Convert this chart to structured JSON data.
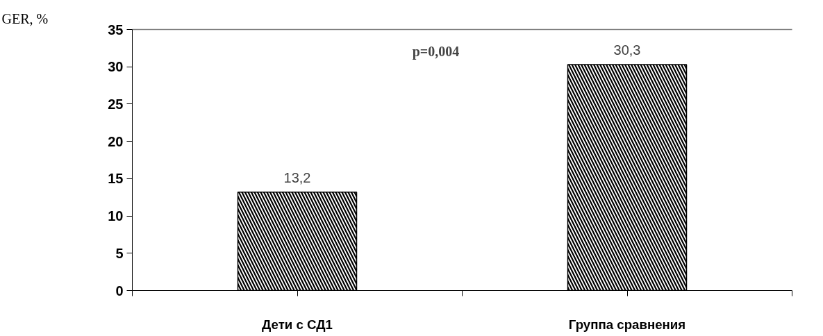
{
  "chart_data": {
    "type": "bar",
    "ylabel": "GER, %",
    "categories": [
      "Дети с СД1",
      "Группа сравнения"
    ],
    "values": [
      13.2,
      30.3
    ],
    "value_labels": [
      "13,2",
      "30,3"
    ],
    "color": "#ffffff",
    "ylim": [
      0,
      35
    ],
    "yticks": [
      0,
      5,
      10,
      15,
      20,
      25,
      30,
      35
    ],
    "grid": false,
    "annotations": [
      "p=0,004"
    ]
  }
}
